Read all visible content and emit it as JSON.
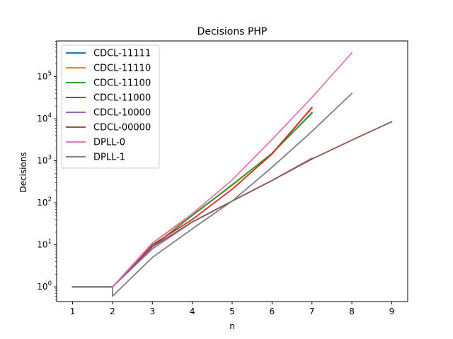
{
  "chart_data": {
    "type": "line",
    "title": "Decisions PHP",
    "xlabel": "n",
    "ylabel": "Decisions",
    "xlim": [
      0.6,
      9.4
    ],
    "ylim_log10": [
      -0.35,
      5.85
    ],
    "yscale": "log",
    "x_ticks": [
      "1",
      "2",
      "3",
      "4",
      "5",
      "6",
      "7",
      "8",
      "9"
    ],
    "y_ticks": [
      {
        "base": "10",
        "exp": "0"
      },
      {
        "base": "10",
        "exp": "1"
      },
      {
        "base": "10",
        "exp": "2"
      },
      {
        "base": "10",
        "exp": "3"
      },
      {
        "base": "10",
        "exp": "4"
      },
      {
        "base": "10",
        "exp": "5"
      }
    ],
    "legend_position": "top-left",
    "grid": false,
    "series": [
      {
        "name": "CDCL-11111",
        "color": "#1f77b4",
        "x": [
          1,
          2,
          3,
          4,
          5,
          6,
          7
        ],
        "y": [
          1,
          1,
          9,
          50,
          260,
          1500,
          14000
        ]
      },
      {
        "name": "CDCL-11110",
        "color": "#ff7f0e",
        "x": [
          1,
          2,
          3,
          4,
          5,
          6,
          7
        ],
        "y": [
          1,
          1,
          11,
          52,
          260,
          1500,
          18000
        ]
      },
      {
        "name": "CDCL-11100",
        "color": "#2ca02c",
        "x": [
          1,
          2,
          3,
          4,
          5,
          6,
          7
        ],
        "y": [
          1,
          1,
          9,
          50,
          270,
          1500,
          13500
        ]
      },
      {
        "name": "CDCL-11000",
        "color": "#d62728",
        "x": [
          1,
          2,
          3,
          4,
          5,
          6,
          7
        ],
        "y": [
          1,
          1,
          10,
          40,
          210,
          1450,
          18500
        ]
      },
      {
        "name": "CDCL-10000",
        "color": "#9467bd",
        "x": [
          1,
          2,
          3,
          4,
          5,
          6,
          7
        ],
        "y": [
          1,
          1,
          8,
          35,
          110,
          340,
          1150
        ]
      },
      {
        "name": "CDCL-00000",
        "color": "#8c564b",
        "x": [
          1,
          2,
          3,
          4,
          5,
          6,
          7,
          8,
          9
        ],
        "y": [
          1,
          1,
          9,
          35,
          110,
          340,
          1100,
          3100,
          8500
        ]
      },
      {
        "name": "DPLL-0",
        "color": "#e377c2",
        "x": [
          1,
          2,
          3,
          4,
          5,
          6,
          7,
          8
        ],
        "y": [
          1,
          1,
          11,
          55,
          350,
          3200,
          32000,
          370000
        ]
      },
      {
        "name": "DPLL-1",
        "color": "#7f7f7f",
        "x": [
          1,
          2,
          2,
          3,
          4,
          5,
          6,
          7,
          8
        ],
        "y": [
          1,
          1,
          0.6,
          5,
          24,
          110,
          700,
          5000,
          40000
        ]
      }
    ]
  }
}
